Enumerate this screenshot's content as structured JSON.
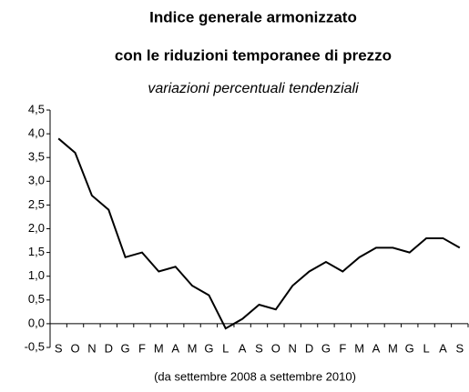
{
  "chart_data": {
    "type": "line",
    "title": "Indice generale armonizzato",
    "subtitle": "con le riduzioni temporanee di prezzo",
    "subtitle2": "variazioni percentuali tendenziali",
    "footnote": "(da settembre 2008 a settembre 2010)",
    "categories": [
      "S",
      "O",
      "N",
      "D",
      "G",
      "F",
      "M",
      "A",
      "M",
      "G",
      "L",
      "A",
      "S",
      "O",
      "N",
      "D",
      "G",
      "F",
      "M",
      "A",
      "M",
      "G",
      "L",
      "A",
      "S"
    ],
    "values": [
      3.9,
      3.6,
      2.7,
      2.4,
      1.4,
      1.5,
      1.1,
      1.2,
      0.8,
      0.6,
      -0.1,
      0.1,
      0.4,
      0.3,
      0.8,
      1.1,
      1.3,
      1.1,
      1.4,
      1.6,
      1.6,
      1.5,
      1.8,
      1.8,
      1.6
    ],
    "color": "#000000",
    "ylim": [
      -0.5,
      4.5
    ],
    "yticks": [
      {
        "value": -0.5,
        "label": "-0,5"
      },
      {
        "value": 0,
        "label": "0,0"
      },
      {
        "value": 0.5,
        "label": "0,5"
      },
      {
        "value": 1,
        "label": "1,0"
      },
      {
        "value": 1.5,
        "label": "1,5"
      },
      {
        "value": 2,
        "label": "2,0"
      },
      {
        "value": 2.5,
        "label": "2,5"
      },
      {
        "value": 3,
        "label": "3,0"
      },
      {
        "value": 3.5,
        "label": "3,5"
      },
      {
        "value": 4,
        "label": "4,0"
      },
      {
        "value": 4.5,
        "label": "4,5"
      }
    ],
    "grid": false
  }
}
